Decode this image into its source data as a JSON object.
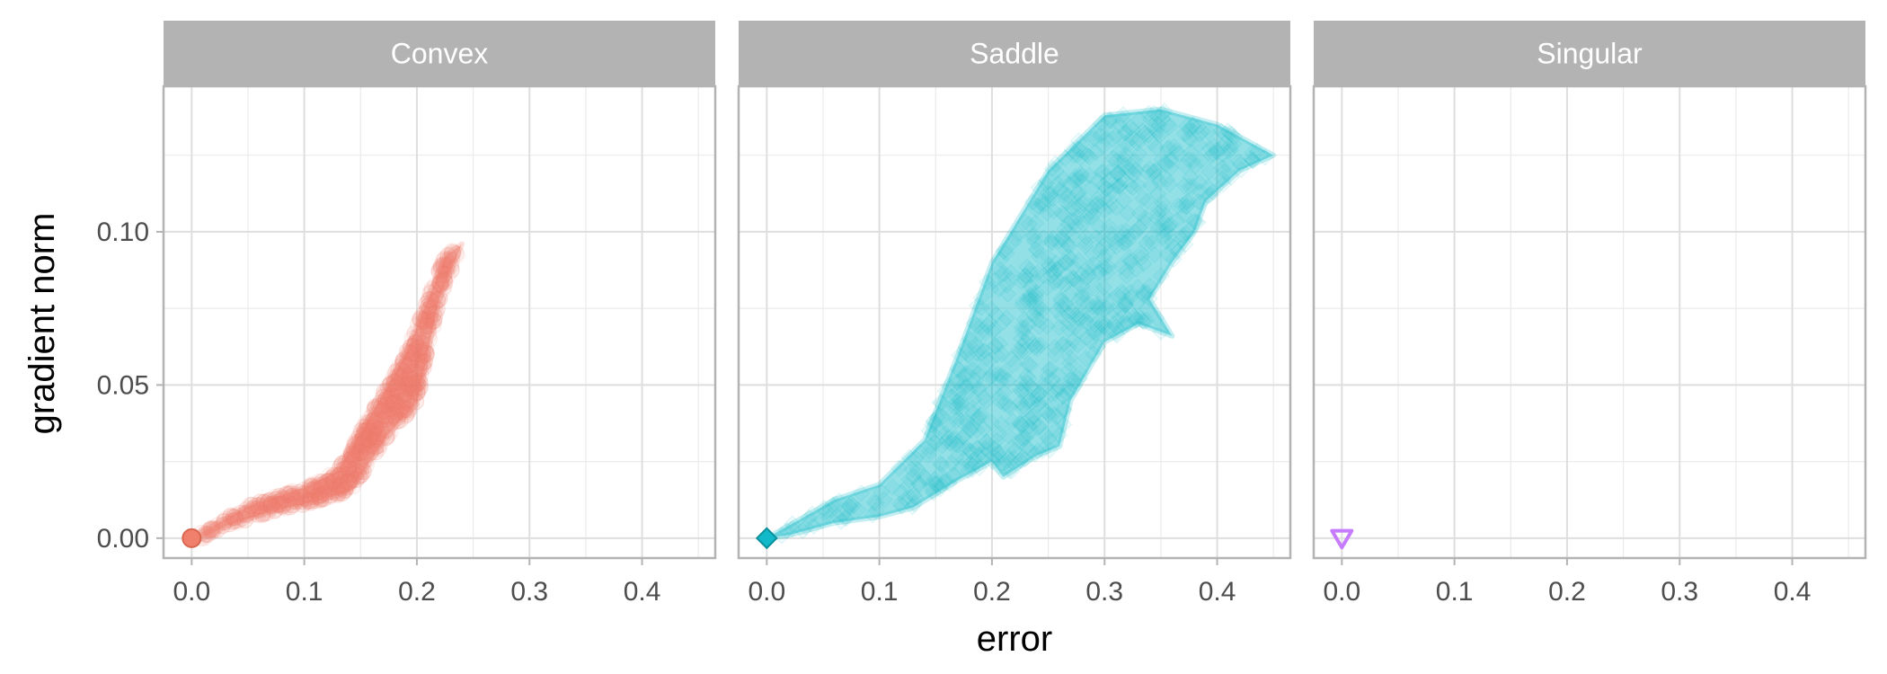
{
  "chart_data": {
    "type": "scatter",
    "xlabel": "error",
    "ylabel": "gradient norm",
    "xlim": [
      -0.025,
      0.465
    ],
    "ylim": [
      -0.0065,
      0.1475
    ],
    "x_ticks": [
      0.0,
      0.1,
      0.2,
      0.3,
      0.4
    ],
    "x_tick_labels": [
      "0.0",
      "0.1",
      "0.2",
      "0.3",
      "0.4"
    ],
    "y_ticks": [
      0.0,
      0.05,
      0.1
    ],
    "y_tick_labels": [
      "0.00",
      "0.05",
      "0.10"
    ],
    "grid": true,
    "legend": "none",
    "panels": [
      {
        "name": "Convex",
        "color": "#F07F6B",
        "marker": "circle",
        "point_opacity": 0.07,
        "cloud": [
          [
            0.0,
            0.0
          ],
          [
            0.05,
            0.0105
          ],
          [
            0.1,
            0.0165
          ],
          [
            0.13,
            0.022
          ],
          [
            0.16,
            0.041
          ],
          [
            0.19,
            0.06
          ],
          [
            0.225,
            0.092
          ],
          [
            0.24,
            0.096
          ],
          [
            0.22,
            0.078
          ],
          [
            0.2,
            0.044
          ],
          [
            0.175,
            0.034
          ],
          [
            0.14,
            0.015
          ],
          [
            0.11,
            0.012
          ],
          [
            0.07,
            0.0085
          ],
          [
            0.03,
            0.004
          ],
          [
            0.01,
            0.0
          ]
        ]
      },
      {
        "name": "Saddle",
        "color": "#12BAC9",
        "marker": "diamond",
        "point_opacity": 0.07,
        "cloud": [
          [
            0.0,
            0.0
          ],
          [
            0.06,
            0.0125
          ],
          [
            0.1,
            0.0175
          ],
          [
            0.14,
            0.032
          ],
          [
            0.17,
            0.06
          ],
          [
            0.2,
            0.09
          ],
          [
            0.25,
            0.12
          ],
          [
            0.3,
            0.138
          ],
          [
            0.35,
            0.14
          ],
          [
            0.4,
            0.135
          ],
          [
            0.45,
            0.125
          ],
          [
            0.42,
            0.12
          ],
          [
            0.39,
            0.11
          ],
          [
            0.38,
            0.1
          ],
          [
            0.36,
            0.09
          ],
          [
            0.34,
            0.078
          ],
          [
            0.36,
            0.066
          ],
          [
            0.33,
            0.07
          ],
          [
            0.3,
            0.064
          ],
          [
            0.27,
            0.045
          ],
          [
            0.26,
            0.03
          ],
          [
            0.24,
            0.027
          ],
          [
            0.21,
            0.02
          ],
          [
            0.2,
            0.025
          ],
          [
            0.17,
            0.019
          ],
          [
            0.13,
            0.01
          ],
          [
            0.1,
            0.007
          ],
          [
            0.06,
            0.005
          ],
          [
            0.02,
            0.001
          ]
        ]
      },
      {
        "name": "Singular",
        "color": "#C77CFF",
        "marker": "triangle-down",
        "points": [
          [
            0.0,
            0.0
          ]
        ]
      }
    ]
  }
}
